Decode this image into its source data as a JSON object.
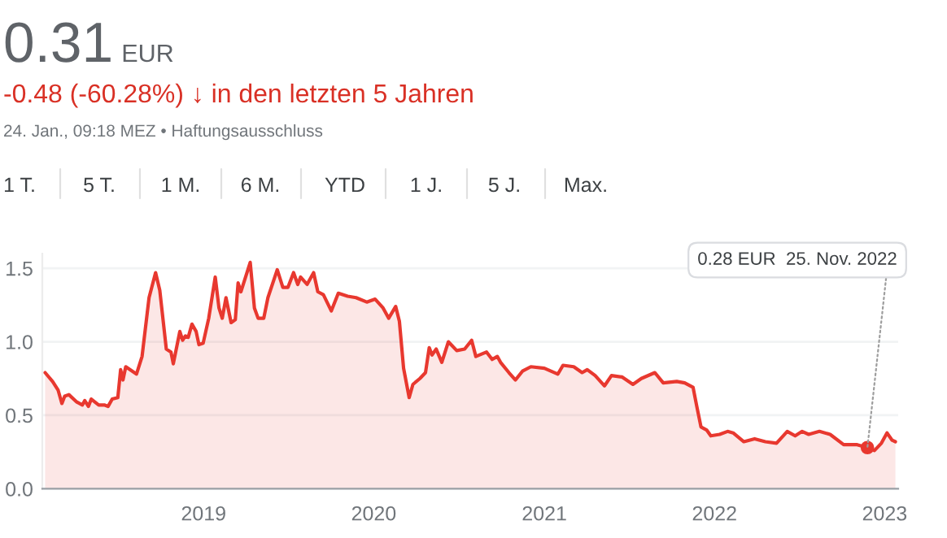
{
  "chart_data": {
    "type": "area",
    "title": "0.31 EUR",
    "subtitle": "-0.48 (-60.28%) ↓ in den letzten 5 Jahren",
    "annotations": [
      "24. Jan., 09:18 MEZ • Haftungsausschluss",
      "1 T.",
      "5 T.",
      "1 M.",
      "6 M.",
      "YTD",
      "1 J.",
      "5 J.",
      "Max.",
      {
        "text": "0.28 EUR  25. Nov. 2022",
        "x": "2022-11-25",
        "y": 0.28
      }
    ],
    "x": [
      "2018-01-26",
      "2018-02-11",
      "2018-02-23",
      "2018-03-03",
      "2018-03-09",
      "2018-03-18",
      "2018-04-04",
      "2018-04-16",
      "2018-04-21",
      "2018-04-29",
      "2018-05-05",
      "2018-05-21",
      "2018-06-02",
      "2018-06-10",
      "2018-06-19",
      "2018-07-01",
      "2018-07-07",
      "2018-07-12",
      "2018-07-18",
      "2018-08-10",
      "2018-08-22",
      "2018-09-06",
      "2018-09-20",
      "2018-09-29",
      "2018-10-13",
      "2018-10-23",
      "2018-10-28",
      "2018-11-11",
      "2018-11-17",
      "2018-11-23",
      "2018-11-29",
      "2018-12-07",
      "2018-12-16",
      "2018-12-22",
      "2018-12-31",
      "2019-01-12",
      "2019-01-26",
      "2019-02-03",
      "2019-02-10",
      "2019-02-18",
      "2019-03-01",
      "2019-03-10",
      "2019-03-16",
      "2019-03-22",
      "2019-04-11",
      "2019-04-20",
      "2019-04-28",
      "2019-05-10",
      "2019-05-19",
      "2019-06-08",
      "2019-06-20",
      "2019-07-01",
      "2019-07-13",
      "2019-07-22",
      "2019-07-28",
      "2019-08-11",
      "2019-08-25",
      "2019-09-03",
      "2019-09-15",
      "2019-10-02",
      "2019-10-17",
      "2019-11-06",
      "2019-11-24",
      "2019-12-17",
      "2020-01-04",
      "2020-01-21",
      "2020-02-02",
      "2020-02-17",
      "2020-02-25",
      "2020-03-05",
      "2020-03-17",
      "2020-03-25",
      "2020-04-09",
      "2020-04-21",
      "2020-04-29",
      "2020-05-05",
      "2020-05-14",
      "2020-05-26",
      "2020-06-09",
      "2020-06-27",
      "2020-07-14",
      "2020-07-29",
      "2020-08-07",
      "2020-08-30",
      "2020-09-11",
      "2020-09-22",
      "2020-09-29",
      "2020-10-17",
      "2020-10-31",
      "2020-11-15",
      "2020-12-03",
      "2021-01-01",
      "2021-01-30",
      "2021-02-10",
      "2021-03-05",
      "2021-03-23",
      "2021-04-03",
      "2021-04-20",
      "2021-05-10",
      "2021-05-25",
      "2021-06-17",
      "2021-07-10",
      "2021-07-28",
      "2021-08-26",
      "2021-09-13",
      "2021-10-12",
      "2021-10-29",
      "2021-11-16",
      "2021-11-24",
      "2021-12-03",
      "2021-12-15",
      "2021-12-24",
      "2022-01-12",
      "2022-01-29",
      "2022-02-10",
      "2022-03-05",
      "2022-03-28",
      "2022-04-20",
      "2022-05-14",
      "2022-06-06",
      "2022-06-23",
      "2022-07-08",
      "2022-07-22",
      "2022-08-14",
      "2022-09-06",
      "2022-10-05",
      "2022-11-03",
      "2022-11-25",
      "2022-12-10",
      "2022-12-25",
      "2023-01-06",
      "2023-01-17",
      "2023-01-24"
    ],
    "series": [
      {
        "color": "#e8382f",
        "values": [
          0.79,
          0.73,
          0.67,
          0.58,
          0.63,
          0.64,
          0.59,
          0.57,
          0.6,
          0.56,
          0.61,
          0.57,
          0.57,
          0.56,
          0.61,
          0.62,
          0.81,
          0.74,
          0.83,
          0.78,
          0.9,
          1.3,
          1.47,
          1.35,
          0.95,
          0.93,
          0.85,
          1.07,
          1.01,
          1.04,
          1.03,
          1.12,
          1.07,
          0.98,
          0.99,
          1.16,
          1.44,
          1.23,
          1.16,
          1.3,
          1.13,
          1.15,
          1.4,
          1.34,
          1.54,
          1.23,
          1.16,
          1.16,
          1.3,
          1.49,
          1.37,
          1.37,
          1.47,
          1.39,
          1.44,
          1.39,
          1.47,
          1.34,
          1.32,
          1.21,
          1.33,
          1.31,
          1.3,
          1.27,
          1.29,
          1.23,
          1.16,
          1.24,
          1.14,
          0.82,
          0.62,
          0.71,
          0.75,
          0.79,
          0.96,
          0.91,
          0.95,
          0.86,
          1.0,
          0.94,
          0.95,
          1.01,
          0.9,
          0.93,
          0.88,
          0.9,
          0.86,
          0.79,
          0.74,
          0.8,
          0.83,
          0.82,
          0.78,
          0.84,
          0.83,
          0.79,
          0.81,
          0.77,
          0.7,
          0.77,
          0.76,
          0.71,
          0.75,
          0.79,
          0.72,
          0.73,
          0.72,
          0.69,
          0.56,
          0.42,
          0.4,
          0.36,
          0.37,
          0.39,
          0.38,
          0.32,
          0.34,
          0.32,
          0.31,
          0.39,
          0.36,
          0.39,
          0.37,
          0.39,
          0.37,
          0.3,
          0.3,
          0.28,
          0.26,
          0.31,
          0.38,
          0.33,
          0.32
        ]
      }
    ],
    "xlim": [
      "2018-01-20",
      "2023-01-30"
    ],
    "xticks": [
      {
        "value": "2019-01-01",
        "label": "2019"
      },
      {
        "value": "2020-01-01",
        "label": "2020"
      },
      {
        "value": "2021-01-01",
        "label": "2021"
      },
      {
        "value": "2022-01-01",
        "label": "2022"
      },
      {
        "value": "2023-01-01",
        "label": "2023"
      }
    ],
    "ylim": [
      0,
      1.6
    ],
    "yticks": [
      {
        "value": 0,
        "label": "0.0"
      },
      0.5,
      {
        "value": 1,
        "label": "1.0"
      },
      1.5
    ],
    "grid": "y",
    "legend": false
  }
}
